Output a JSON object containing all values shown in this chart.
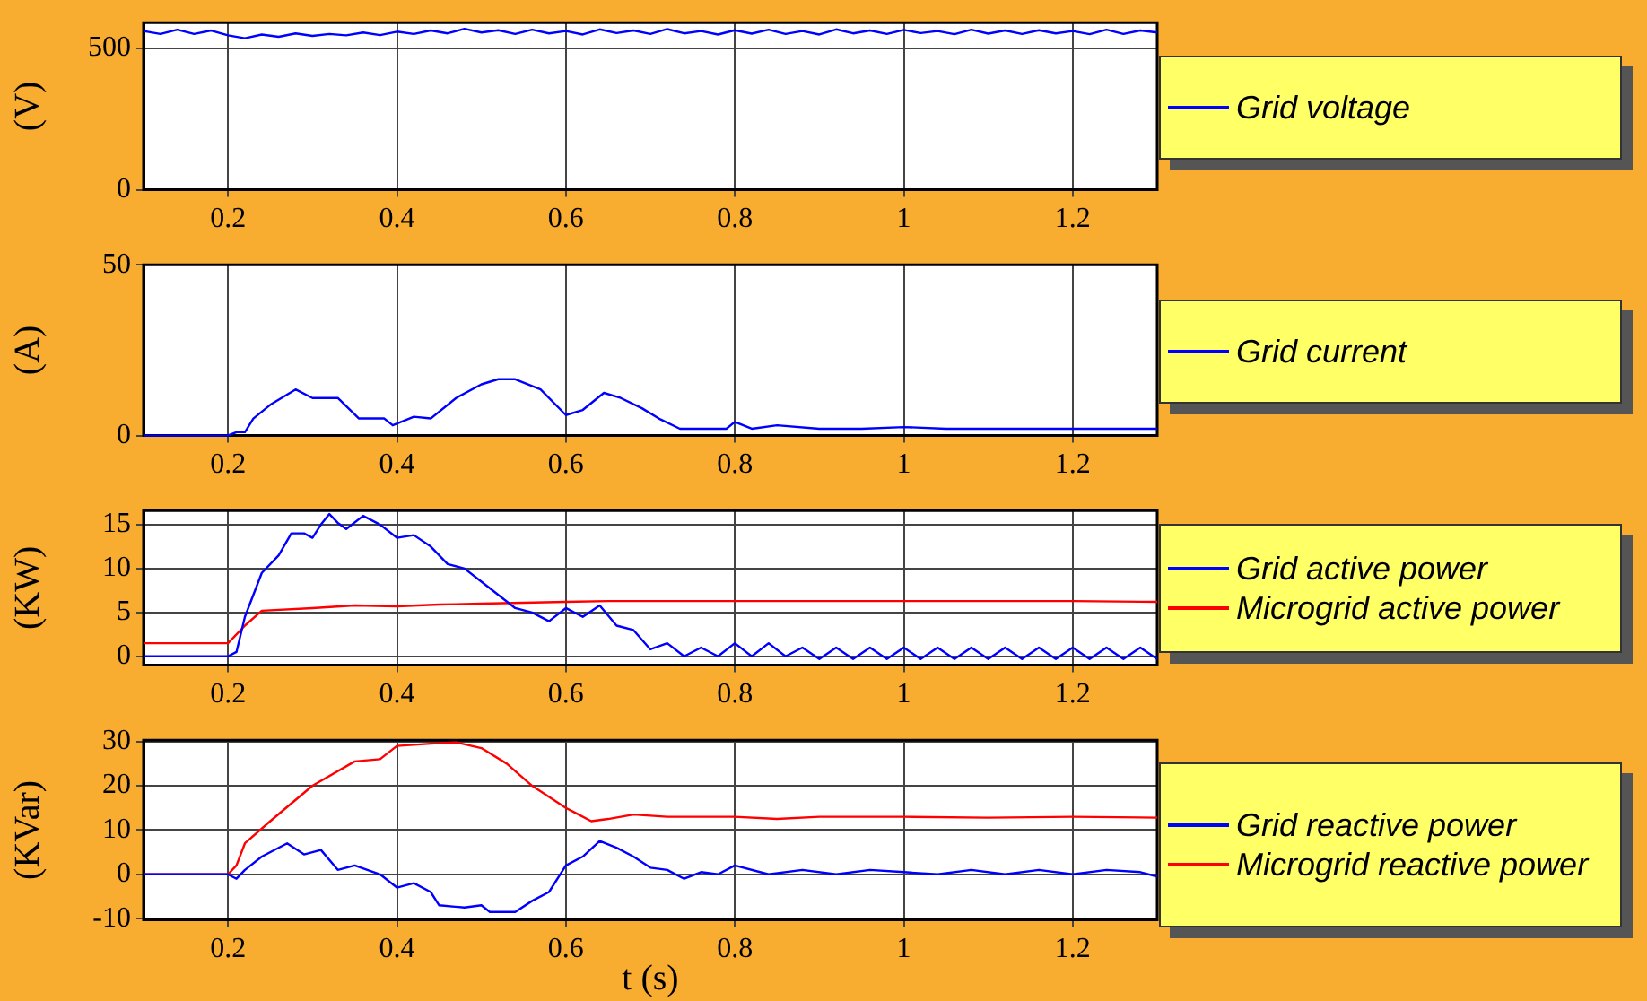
{
  "chart_data": [
    {
      "type": "line",
      "ylabel": "(V)",
      "xlim": [
        0.1,
        1.3
      ],
      "xticks": [
        0.2,
        0.4,
        0.6,
        0.8,
        1,
        1.2
      ],
      "ylim": [
        0,
        590
      ],
      "yticks": [
        0,
        500
      ],
      "grid": true,
      "legend": "right",
      "series": [
        {
          "name": "Grid voltage",
          "color": "#0000ff",
          "x": [
            0.1,
            0.12,
            0.14,
            0.16,
            0.18,
            0.2,
            0.22,
            0.24,
            0.26,
            0.28,
            0.3,
            0.32,
            0.34,
            0.36,
            0.38,
            0.4,
            0.42,
            0.44,
            0.46,
            0.48,
            0.5,
            0.52,
            0.54,
            0.56,
            0.58,
            0.6,
            0.62,
            0.64,
            0.66,
            0.68,
            0.7,
            0.72,
            0.74,
            0.76,
            0.78,
            0.8,
            0.82,
            0.84,
            0.86,
            0.88,
            0.9,
            0.92,
            0.94,
            0.96,
            0.98,
            1,
            1.02,
            1.04,
            1.06,
            1.08,
            1.1,
            1.12,
            1.14,
            1.16,
            1.18,
            1.2,
            1.22,
            1.24,
            1.26,
            1.28,
            1.3
          ],
          "values": [
            560,
            550,
            565,
            550,
            562,
            545,
            535,
            548,
            540,
            552,
            543,
            550,
            545,
            555,
            546,
            558,
            550,
            562,
            552,
            568,
            555,
            563,
            550,
            565,
            552,
            560,
            548,
            566,
            553,
            562,
            550,
            567,
            552,
            560,
            548,
            563,
            551,
            565,
            550,
            560,
            548,
            566,
            552,
            562,
            550,
            564,
            553,
            560,
            549,
            565,
            551,
            562,
            550,
            563,
            552,
            560,
            549,
            565,
            550,
            562,
            555
          ]
        }
      ]
    },
    {
      "type": "line",
      "ylabel": "(A)",
      "xlim": [
        0.1,
        1.3
      ],
      "xticks": [
        0.2,
        0.4,
        0.6,
        0.8,
        1,
        1.2
      ],
      "ylim": [
        0,
        50
      ],
      "yticks": [
        0,
        50
      ],
      "grid": true,
      "legend": "right",
      "series": [
        {
          "name": "Grid current",
          "color": "#0000ff",
          "x": [
            0.1,
            0.2,
            0.21,
            0.22,
            0.23,
            0.25,
            0.28,
            0.3,
            0.33,
            0.355,
            0.385,
            0.395,
            0.42,
            0.44,
            0.47,
            0.5,
            0.52,
            0.54,
            0.57,
            0.6,
            0.62,
            0.645,
            0.665,
            0.69,
            0.71,
            0.735,
            0.76,
            0.79,
            0.8,
            0.82,
            0.85,
            0.9,
            0.95,
            1,
            1.05,
            1.1,
            1.15,
            1.2,
            1.3
          ],
          "values": [
            0,
            0,
            1,
            1,
            5,
            9,
            13.5,
            11,
            11,
            5,
            5,
            3,
            5.5,
            5,
            11,
            15,
            16.5,
            16.5,
            13.5,
            6,
            7.5,
            12.5,
            11,
            8,
            5,
            2,
            2,
            2,
            4,
            2,
            3,
            2,
            2,
            2.5,
            2,
            2,
            2,
            2,
            2
          ]
        }
      ]
    },
    {
      "type": "line",
      "ylabel": "(KW)",
      "xlim": [
        0.1,
        1.3
      ],
      "xticks": [
        0.2,
        0.4,
        0.6,
        0.8,
        1,
        1.2
      ],
      "ylim": [
        -1,
        16.6
      ],
      "yticks": [
        0,
        5,
        10,
        15
      ],
      "grid": true,
      "legend": "right",
      "series": [
        {
          "name": "Grid active power",
          "color": "#0000ff",
          "x": [
            0.1,
            0.2,
            0.21,
            0.22,
            0.24,
            0.26,
            0.275,
            0.29,
            0.3,
            0.31,
            0.32,
            0.33,
            0.34,
            0.36,
            0.38,
            0.4,
            0.42,
            0.44,
            0.46,
            0.48,
            0.5,
            0.52,
            0.54,
            0.56,
            0.58,
            0.6,
            0.62,
            0.64,
            0.66,
            0.68,
            0.7,
            0.72,
            0.74,
            0.76,
            0.78,
            0.8,
            0.82,
            0.84,
            0.86,
            0.88,
            0.9,
            0.92,
            0.94,
            0.96,
            0.98,
            1,
            1.02,
            1.04,
            1.06,
            1.08,
            1.1,
            1.12,
            1.14,
            1.16,
            1.18,
            1.2,
            1.22,
            1.24,
            1.26,
            1.28,
            1.3
          ],
          "values": [
            0,
            0,
            0.5,
            4.5,
            9.5,
            11.5,
            14,
            14,
            13.5,
            15,
            16.2,
            15.2,
            14.5,
            16,
            15,
            13.5,
            13.8,
            12.5,
            10.5,
            10,
            8.5,
            7,
            5.5,
            5,
            4,
            5.5,
            4.5,
            5.8,
            3.5,
            3,
            0.8,
            1.5,
            0,
            1,
            0,
            1.5,
            0,
            1.5,
            0,
            1,
            -0.3,
            1,
            -0.3,
            1,
            -0.3,
            1,
            -0.3,
            1,
            -0.3,
            1,
            -0.3,
            1,
            -0.3,
            1,
            -0.3,
            1,
            -0.3,
            1,
            -0.3,
            1,
            -0.3
          ]
        },
        {
          "name": "Microgrid active power",
          "color": "#ff0000",
          "x": [
            0.1,
            0.2,
            0.22,
            0.24,
            0.3,
            0.35,
            0.4,
            0.45,
            0.5,
            0.55,
            0.6,
            0.65,
            0.7,
            0.8,
            0.9,
            1,
            1.1,
            1.2,
            1.3
          ],
          "values": [
            1.5,
            1.5,
            3.5,
            5.2,
            5.5,
            5.8,
            5.7,
            5.9,
            6,
            6.1,
            6.2,
            6.3,
            6.3,
            6.3,
            6.3,
            6.3,
            6.3,
            6.3,
            6.2
          ]
        }
      ]
    },
    {
      "type": "line",
      "ylabel": "(KVar)",
      "xlabel": "t (s)",
      "xlim": [
        0.1,
        1.3
      ],
      "xticks": [
        0.2,
        0.4,
        0.6,
        0.8,
        1,
        1.2
      ],
      "ylim": [
        -10.3,
        30.3
      ],
      "yticks": [
        -10,
        0,
        10,
        20,
        30
      ],
      "grid": true,
      "legend": "right",
      "series": [
        {
          "name": "Grid reactive power",
          "color": "#0000ff",
          "x": [
            0.1,
            0.2,
            0.21,
            0.22,
            0.24,
            0.27,
            0.29,
            0.31,
            0.33,
            0.35,
            0.38,
            0.4,
            0.42,
            0.44,
            0.45,
            0.48,
            0.5,
            0.51,
            0.54,
            0.56,
            0.58,
            0.6,
            0.62,
            0.64,
            0.66,
            0.68,
            0.7,
            0.72,
            0.74,
            0.76,
            0.78,
            0.8,
            0.84,
            0.88,
            0.92,
            0.96,
            1,
            1.04,
            1.08,
            1.12,
            1.16,
            1.2,
            1.24,
            1.28,
            1.3
          ],
          "values": [
            0,
            0,
            -1,
            1,
            4,
            7,
            4.5,
            5.5,
            1,
            2,
            0,
            -3,
            -2,
            -4,
            -7,
            -7.5,
            -7,
            -8.5,
            -8.5,
            -6,
            -4,
            2,
            4,
            7.5,
            6,
            4,
            1.5,
            1,
            -1,
            0.5,
            0,
            2,
            0,
            1,
            0,
            1,
            0.5,
            0,
            1,
            0,
            1,
            0,
            1,
            0.5,
            -0.5
          ]
        },
        {
          "name": "Microgrid reactive power",
          "color": "#ff0000",
          "x": [
            0.1,
            0.2,
            0.21,
            0.22,
            0.25,
            0.3,
            0.35,
            0.38,
            0.4,
            0.44,
            0.47,
            0.5,
            0.53,
            0.56,
            0.6,
            0.61,
            0.63,
            0.65,
            0.68,
            0.72,
            0.8,
            0.85,
            0.9,
            1,
            1.1,
            1.2,
            1.3
          ],
          "values": [
            0,
            0,
            2,
            7,
            12,
            20,
            25.5,
            26,
            29,
            29.5,
            29.8,
            28.5,
            25,
            20,
            15,
            14,
            12,
            12.5,
            13.5,
            13,
            13,
            12.5,
            13,
            13,
            12.8,
            13,
            12.8
          ]
        }
      ]
    }
  ]
}
